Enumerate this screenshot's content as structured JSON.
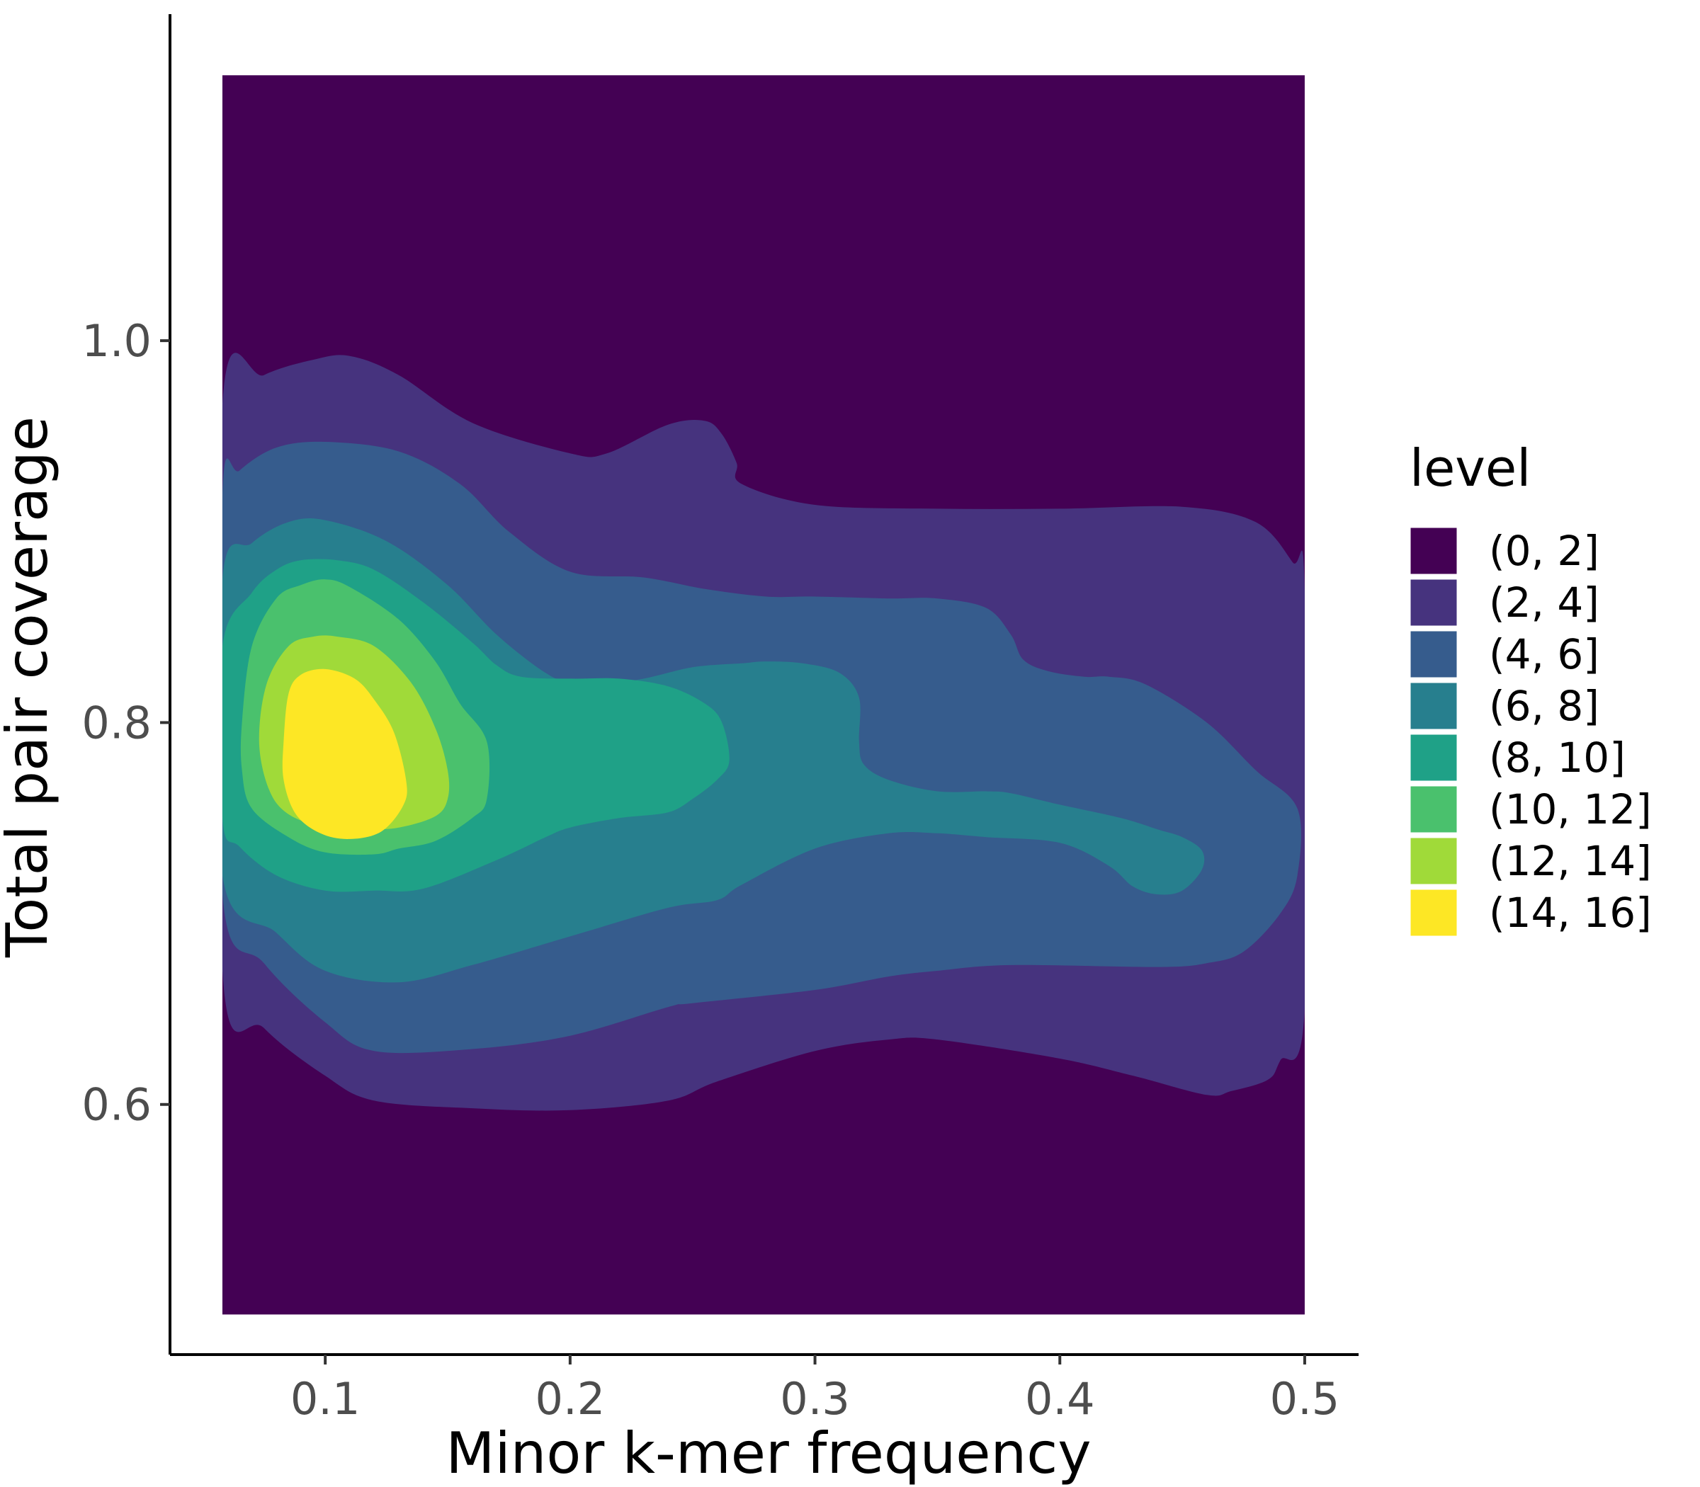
{
  "chart_data": {
    "type": "contour",
    "xlabel": "Minor k-mer frequency",
    "ylabel": "Total pair coverage",
    "xlim": [
      0.0366,
      0.522
    ],
    "ylim": [
      0.469,
      1.171
    ],
    "x_ticks": [
      {
        "value": 0.1,
        "label": "0.1"
      },
      {
        "value": 0.2,
        "label": "0.2"
      },
      {
        "value": 0.3,
        "label": "0.3"
      },
      {
        "value": 0.4,
        "label": "0.4"
      },
      {
        "value": 0.5,
        "label": "0.5"
      }
    ],
    "y_ticks": [
      {
        "value": 0.6,
        "label": "0.6"
      },
      {
        "value": 0.8,
        "label": "0.8"
      },
      {
        "value": 1.0,
        "label": "1.0"
      }
    ],
    "grid": false,
    "data_extent": {
      "x": [
        0.058,
        0.5
      ],
      "y": [
        0.49,
        1.139
      ]
    },
    "legend": {
      "title": "level",
      "position": "right",
      "entries": [
        {
          "label": "(0, 2]",
          "color": "#440154"
        },
        {
          "label": "(2, 4]",
          "color": "#46337E"
        },
        {
          "label": "(4, 6]",
          "color": "#365C8D"
        },
        {
          "label": "(6, 8]",
          "color": "#277F8E"
        },
        {
          "label": "(8, 10]",
          "color": "#1FA187"
        },
        {
          "label": "(10, 12]",
          "color": "#4AC16D"
        },
        {
          "label": "(12, 14]",
          "color": "#A0DA39"
        },
        {
          "label": "(14, 16]",
          "color": "#FDE725"
        }
      ]
    },
    "contours": [
      {
        "level": "(2, 4]",
        "points": [
          [
            0.058,
            0.967
          ],
          [
            0.075,
            0.982
          ],
          [
            0.095,
            0.99
          ],
          [
            0.11,
            0.992
          ],
          [
            0.13,
            0.982
          ],
          [
            0.16,
            0.957
          ],
          [
            0.2,
            0.941
          ],
          [
            0.215,
            0.941
          ],
          [
            0.24,
            0.956
          ],
          [
            0.255,
            0.958
          ],
          [
            0.262,
            0.951
          ],
          [
            0.268,
            0.936
          ],
          [
            0.27,
            0.925
          ],
          [
            0.3,
            0.914
          ],
          [
            0.35,
            0.912
          ],
          [
            0.4,
            0.912
          ],
          [
            0.45,
            0.913
          ],
          [
            0.48,
            0.905
          ],
          [
            0.495,
            0.884
          ],
          [
            0.5,
            0.87
          ],
          [
            0.5,
            0.65
          ],
          [
            0.49,
            0.623
          ],
          [
            0.485,
            0.613
          ],
          [
            0.47,
            0.607
          ],
          [
            0.46,
            0.605
          ],
          [
            0.43,
            0.615
          ],
          [
            0.4,
            0.624
          ],
          [
            0.35,
            0.634
          ],
          [
            0.33,
            0.634
          ],
          [
            0.3,
            0.628
          ],
          [
            0.26,
            0.612
          ],
          [
            0.24,
            0.602
          ],
          [
            0.2,
            0.597
          ],
          [
            0.16,
            0.598
          ],
          [
            0.12,
            0.602
          ],
          [
            0.1,
            0.615
          ],
          [
            0.075,
            0.64
          ],
          [
            0.058,
            0.67
          ]
        ]
      },
      {
        "level": "(4, 6]",
        "points": [
          [
            0.058,
            0.919
          ],
          [
            0.065,
            0.932
          ],
          [
            0.08,
            0.944
          ],
          [
            0.1,
            0.947
          ],
          [
            0.13,
            0.942
          ],
          [
            0.155,
            0.925
          ],
          [
            0.175,
            0.9
          ],
          [
            0.2,
            0.879
          ],
          [
            0.23,
            0.876
          ],
          [
            0.255,
            0.87
          ],
          [
            0.28,
            0.866
          ],
          [
            0.3,
            0.866
          ],
          [
            0.33,
            0.865
          ],
          [
            0.35,
            0.865
          ],
          [
            0.37,
            0.86
          ],
          [
            0.38,
            0.846
          ],
          [
            0.385,
            0.833
          ],
          [
            0.395,
            0.827
          ],
          [
            0.41,
            0.824
          ],
          [
            0.42,
            0.824
          ],
          [
            0.435,
            0.82
          ],
          [
            0.46,
            0.8
          ],
          [
            0.48,
            0.775
          ],
          [
            0.497,
            0.755
          ],
          [
            0.497,
            0.72
          ],
          [
            0.49,
            0.7
          ],
          [
            0.475,
            0.68
          ],
          [
            0.46,
            0.674
          ],
          [
            0.44,
            0.672
          ],
          [
            0.38,
            0.673
          ],
          [
            0.35,
            0.67
          ],
          [
            0.33,
            0.667
          ],
          [
            0.3,
            0.66
          ],
          [
            0.25,
            0.653
          ],
          [
            0.24,
            0.651
          ],
          [
            0.2,
            0.636
          ],
          [
            0.16,
            0.629
          ],
          [
            0.12,
            0.628
          ],
          [
            0.1,
            0.643
          ],
          [
            0.075,
            0.674
          ],
          [
            0.058,
            0.71
          ]
        ]
      },
      {
        "level": "(6, 8]",
        "points": [
          [
            0.058,
            0.875
          ],
          [
            0.07,
            0.894
          ],
          [
            0.085,
            0.905
          ],
          [
            0.1,
            0.906
          ],
          [
            0.125,
            0.895
          ],
          [
            0.15,
            0.872
          ],
          [
            0.17,
            0.846
          ],
          [
            0.19,
            0.826
          ],
          [
            0.2,
            0.822
          ],
          [
            0.225,
            0.822
          ],
          [
            0.25,
            0.829
          ],
          [
            0.27,
            0.831
          ],
          [
            0.28,
            0.832
          ],
          [
            0.295,
            0.831
          ],
          [
            0.31,
            0.826
          ],
          [
            0.318,
            0.813
          ],
          [
            0.318,
            0.79
          ],
          [
            0.32,
            0.778
          ],
          [
            0.33,
            0.77
          ],
          [
            0.35,
            0.764
          ],
          [
            0.37,
            0.764
          ],
          [
            0.38,
            0.763
          ],
          [
            0.4,
            0.757
          ],
          [
            0.425,
            0.75
          ],
          [
            0.44,
            0.744
          ],
          [
            0.45,
            0.74
          ],
          [
            0.458,
            0.733
          ],
          [
            0.458,
            0.723
          ],
          [
            0.45,
            0.712
          ],
          [
            0.44,
            0.71
          ],
          [
            0.43,
            0.714
          ],
          [
            0.42,
            0.725
          ],
          [
            0.4,
            0.737
          ],
          [
            0.37,
            0.74
          ],
          [
            0.35,
            0.742
          ],
          [
            0.33,
            0.742
          ],
          [
            0.3,
            0.734
          ],
          [
            0.27,
            0.715
          ],
          [
            0.26,
            0.707
          ],
          [
            0.24,
            0.703
          ],
          [
            0.2,
            0.688
          ],
          [
            0.16,
            0.673
          ],
          [
            0.13,
            0.664
          ],
          [
            0.1,
            0.67
          ],
          [
            0.08,
            0.69
          ],
          [
            0.058,
            0.72
          ]
        ]
      },
      {
        "level": "(8, 10]",
        "points": [
          [
            0.058,
            0.84
          ],
          [
            0.07,
            0.868
          ],
          [
            0.08,
            0.88
          ],
          [
            0.09,
            0.885
          ],
          [
            0.105,
            0.885
          ],
          [
            0.12,
            0.88
          ],
          [
            0.14,
            0.863
          ],
          [
            0.16,
            0.842
          ],
          [
            0.17,
            0.83
          ],
          [
            0.18,
            0.824
          ],
          [
            0.2,
            0.823
          ],
          [
            0.22,
            0.823
          ],
          [
            0.24,
            0.819
          ],
          [
            0.255,
            0.81
          ],
          [
            0.262,
            0.8
          ],
          [
            0.265,
            0.78
          ],
          [
            0.26,
            0.77
          ],
          [
            0.25,
            0.76
          ],
          [
            0.24,
            0.753
          ],
          [
            0.22,
            0.75
          ],
          [
            0.2,
            0.745
          ],
          [
            0.19,
            0.74
          ],
          [
            0.17,
            0.728
          ],
          [
            0.14,
            0.713
          ],
          [
            0.12,
            0.712
          ],
          [
            0.1,
            0.712
          ],
          [
            0.08,
            0.72
          ],
          [
            0.065,
            0.735
          ],
          [
            0.058,
            0.75
          ]
        ]
      },
      {
        "level": "(10, 12]",
        "points": [
          [
            0.066,
            0.8
          ],
          [
            0.07,
            0.84
          ],
          [
            0.08,
            0.865
          ],
          [
            0.09,
            0.872
          ],
          [
            0.1,
            0.875
          ],
          [
            0.11,
            0.871
          ],
          [
            0.13,
            0.854
          ],
          [
            0.145,
            0.832
          ],
          [
            0.155,
            0.81
          ],
          [
            0.166,
            0.79
          ],
          [
            0.166,
            0.76
          ],
          [
            0.16,
            0.75
          ],
          [
            0.145,
            0.738
          ],
          [
            0.13,
            0.734
          ],
          [
            0.12,
            0.731
          ],
          [
            0.1,
            0.732
          ],
          [
            0.085,
            0.74
          ],
          [
            0.07,
            0.755
          ],
          [
            0.066,
            0.775
          ]
        ]
      },
      {
        "level": "(12, 14]",
        "points": [
          [
            0.073,
            0.79
          ],
          [
            0.076,
            0.82
          ],
          [
            0.085,
            0.84
          ],
          [
            0.095,
            0.845
          ],
          [
            0.105,
            0.845
          ],
          [
            0.12,
            0.84
          ],
          [
            0.135,
            0.821
          ],
          [
            0.145,
            0.797
          ],
          [
            0.15,
            0.775
          ],
          [
            0.15,
            0.76
          ],
          [
            0.145,
            0.751
          ],
          [
            0.13,
            0.745
          ],
          [
            0.115,
            0.744
          ],
          [
            0.1,
            0.745
          ],
          [
            0.085,
            0.752
          ],
          [
            0.077,
            0.765
          ]
        ]
      },
      {
        "level": "(14, 16]",
        "points": [
          [
            0.083,
            0.79
          ],
          [
            0.085,
            0.815
          ],
          [
            0.09,
            0.825
          ],
          [
            0.1,
            0.828
          ],
          [
            0.112,
            0.823
          ],
          [
            0.12,
            0.812
          ],
          [
            0.128,
            0.795
          ],
          [
            0.133,
            0.77
          ],
          [
            0.132,
            0.757
          ],
          [
            0.123,
            0.743
          ],
          [
            0.11,
            0.739
          ],
          [
            0.098,
            0.742
          ],
          [
            0.088,
            0.752
          ],
          [
            0.083,
            0.77
          ]
        ]
      }
    ]
  }
}
